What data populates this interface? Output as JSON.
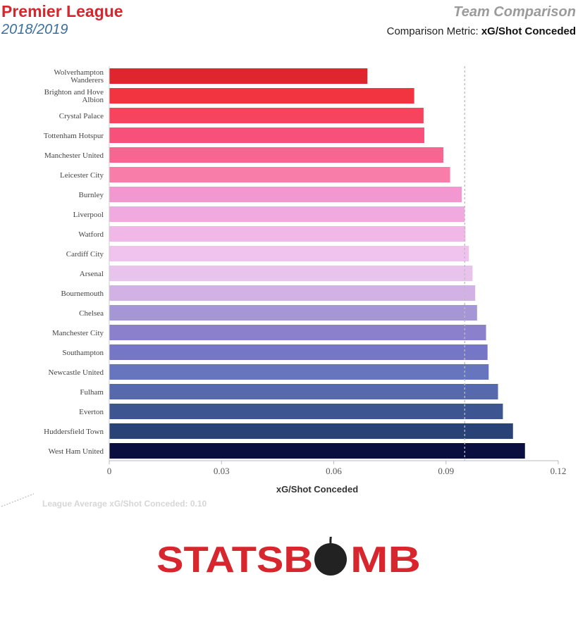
{
  "header": {
    "league": "Premier League",
    "season": "2018/2019",
    "comparison_title": "Team Comparison",
    "metric_prefix": "Comparison Metric: ",
    "metric_name": "xG/Shot Conceded"
  },
  "legend": {
    "average_label": "League Average xG/Shot Conceded: 0.10"
  },
  "logo": {
    "text_left": "STATSB",
    "text_right": "MB",
    "color": "#d7262e"
  },
  "chart_data": {
    "type": "bar",
    "orientation": "horizontal",
    "xlabel": "xG/Shot Conceded",
    "xlim": [
      0,
      0.12
    ],
    "xticks": [
      "0",
      "0.03",
      "0.06",
      "0.09",
      "0.12"
    ],
    "average": 0.095,
    "categories": [
      [
        "Wolverhampton",
        "Wanderers"
      ],
      [
        "Brighton and Hove",
        "Albion"
      ],
      [
        "Crystal Palace"
      ],
      [
        "Tottenham Hotspur"
      ],
      [
        "Manchester United"
      ],
      [
        "Leicester City"
      ],
      [
        "Burnley"
      ],
      [
        "Liverpool"
      ],
      [
        "Watford"
      ],
      [
        "Cardiff City"
      ],
      [
        "Arsenal"
      ],
      [
        "Bournemouth"
      ],
      [
        "Chelsea"
      ],
      [
        "Manchester City"
      ],
      [
        "Southampton"
      ],
      [
        "Newcastle United"
      ],
      [
        "Fulham"
      ],
      [
        "Everton"
      ],
      [
        "Huddersfield Town"
      ],
      [
        "West Ham United"
      ]
    ],
    "values": [
      0.069,
      0.0815,
      0.084,
      0.0842,
      0.0893,
      0.0911,
      0.0942,
      0.095,
      0.0952,
      0.0961,
      0.0971,
      0.0978,
      0.0983,
      0.1007,
      0.1011,
      0.1014,
      0.1039,
      0.1052,
      0.1079,
      0.1111
    ],
    "colors": [
      "#df262f",
      "#f23340",
      "#f7435e",
      "#f7517b",
      "#f76690",
      "#f87da9",
      "#f297cf",
      "#f0aadf",
      "#f1b7e7",
      "#efc3ed",
      "#e8c4ed",
      "#d2b1e4",
      "#a596d6",
      "#8a80cc",
      "#7577c6",
      "#6675bd",
      "#5769ad",
      "#3d5590",
      "#2a4377",
      "#0a0f3f"
    ]
  }
}
